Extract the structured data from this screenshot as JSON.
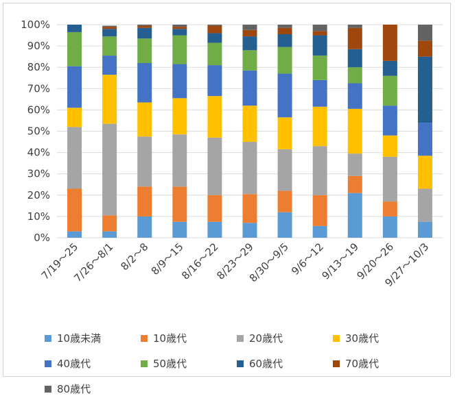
{
  "chart_data": {
    "type": "bar",
    "stacked": true,
    "categories": [
      "7/19～25",
      "7/26～8/1",
      "8/2～8",
      "8/9～15",
      "8/16～22",
      "8/23～29",
      "8/30～9/5",
      "9/6～12",
      "9/13～19",
      "9/20～26",
      "9/27～10/3"
    ],
    "y_ticks": [
      "0%",
      "10%",
      "20%",
      "30%",
      "40%",
      "50%",
      "60%",
      "70%",
      "80%",
      "90%",
      "100%"
    ],
    "ylim": [
      0,
      100
    ],
    "grid": true,
    "legend_position": "bottom",
    "series": [
      {
        "name": "10歳未満",
        "color": "#5B9BD5",
        "values": [
          3,
          3,
          10,
          7.5,
          7.5,
          7,
          12,
          5.5,
          21,
          10,
          7.5
        ]
      },
      {
        "name": "10歳代",
        "color": "#ED7D31",
        "values": [
          20,
          7.5,
          14,
          16.5,
          12.5,
          13.5,
          10,
          14.5,
          8,
          7,
          0
        ]
      },
      {
        "name": "20歳代",
        "color": "#A5A5A5",
        "values": [
          29,
          43,
          23.5,
          24.5,
          27,
          24.5,
          19.5,
          23,
          10.5,
          21,
          15.5
        ]
      },
      {
        "name": "30歳代",
        "color": "#FFC000",
        "values": [
          9,
          23,
          16,
          17,
          19.5,
          17,
          15,
          18.5,
          21,
          10,
          15.5
        ]
      },
      {
        "name": "40歳代",
        "color": "#4472C4",
        "values": [
          19.5,
          9,
          18.5,
          16,
          14.5,
          16.5,
          20.5,
          12.5,
          12,
          14,
          15.5
        ]
      },
      {
        "name": "50歳代",
        "color": "#70AD47",
        "values": [
          16,
          9,
          11.5,
          13.5,
          10.5,
          9.5,
          12.5,
          11.5,
          7.5,
          14,
          0
        ]
      },
      {
        "name": "60歳代",
        "color": "#255E91",
        "values": [
          3.5,
          3.5,
          5,
          3,
          4.5,
          6.5,
          6,
          9.5,
          8.5,
          7,
          31
        ]
      },
      {
        "name": "70歳代",
        "color": "#9E480E",
        "values": [
          0,
          1,
          1,
          1,
          3.5,
          3,
          3,
          2,
          10,
          17,
          7.5
        ]
      },
      {
        "name": "80歳代",
        "color": "#636363",
        "values": [
          0,
          0.5,
          0.5,
          1,
          0.5,
          2.5,
          1.5,
          3,
          1.5,
          0,
          7.5
        ]
      }
    ]
  }
}
